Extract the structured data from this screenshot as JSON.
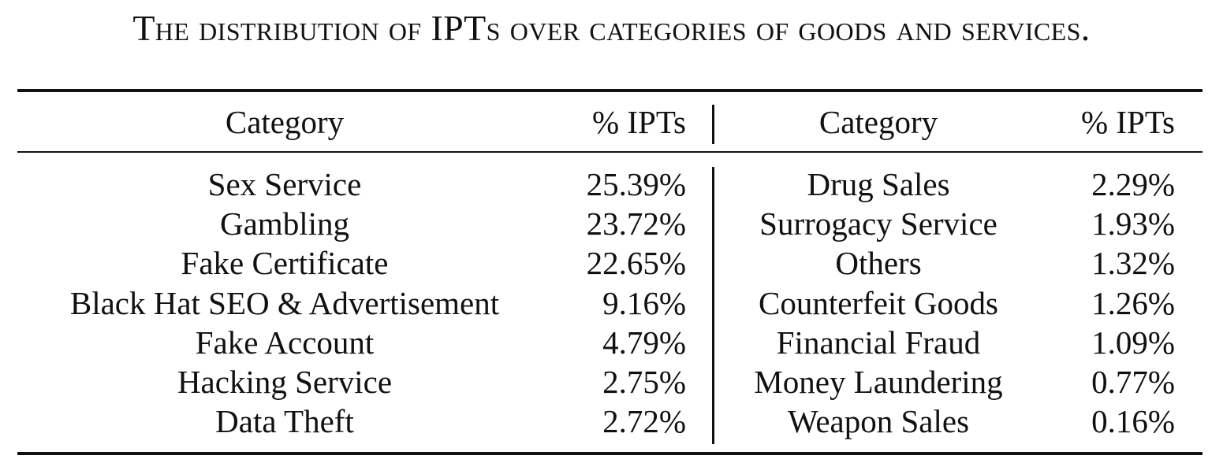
{
  "caption": "The distribution of IPTs over categories of goods and services.",
  "table": {
    "headers": {
      "left_category": "Category",
      "left_pct": "% IPTs",
      "right_category": "Category",
      "right_pct": "% IPTs"
    },
    "rows": [
      {
        "left_category": "Sex Service",
        "left_pct": "25.39%",
        "right_category": "Drug Sales",
        "right_pct": "2.29%"
      },
      {
        "left_category": "Gambling",
        "left_pct": "23.72%",
        "right_category": "Surrogacy Service",
        "right_pct": "1.93%"
      },
      {
        "left_category": "Fake Certificate",
        "left_pct": "22.65%",
        "right_category": "Others",
        "right_pct": "1.32%"
      },
      {
        "left_category": "Black Hat SEO & Advertisement",
        "left_pct": "9.16%",
        "right_category": "Counterfeit Goods",
        "right_pct": "1.26%"
      },
      {
        "left_category": "Fake Account",
        "left_pct": "4.79%",
        "right_category": "Financial Fraud",
        "right_pct": "1.09%"
      },
      {
        "left_category": "Hacking Service",
        "left_pct": "2.75%",
        "right_category": "Money Laundering",
        "right_pct": "0.77%"
      },
      {
        "left_category": "Data Theft",
        "left_pct": "2.72%",
        "right_category": "Weapon Sales",
        "right_pct": "0.16%"
      }
    ]
  }
}
